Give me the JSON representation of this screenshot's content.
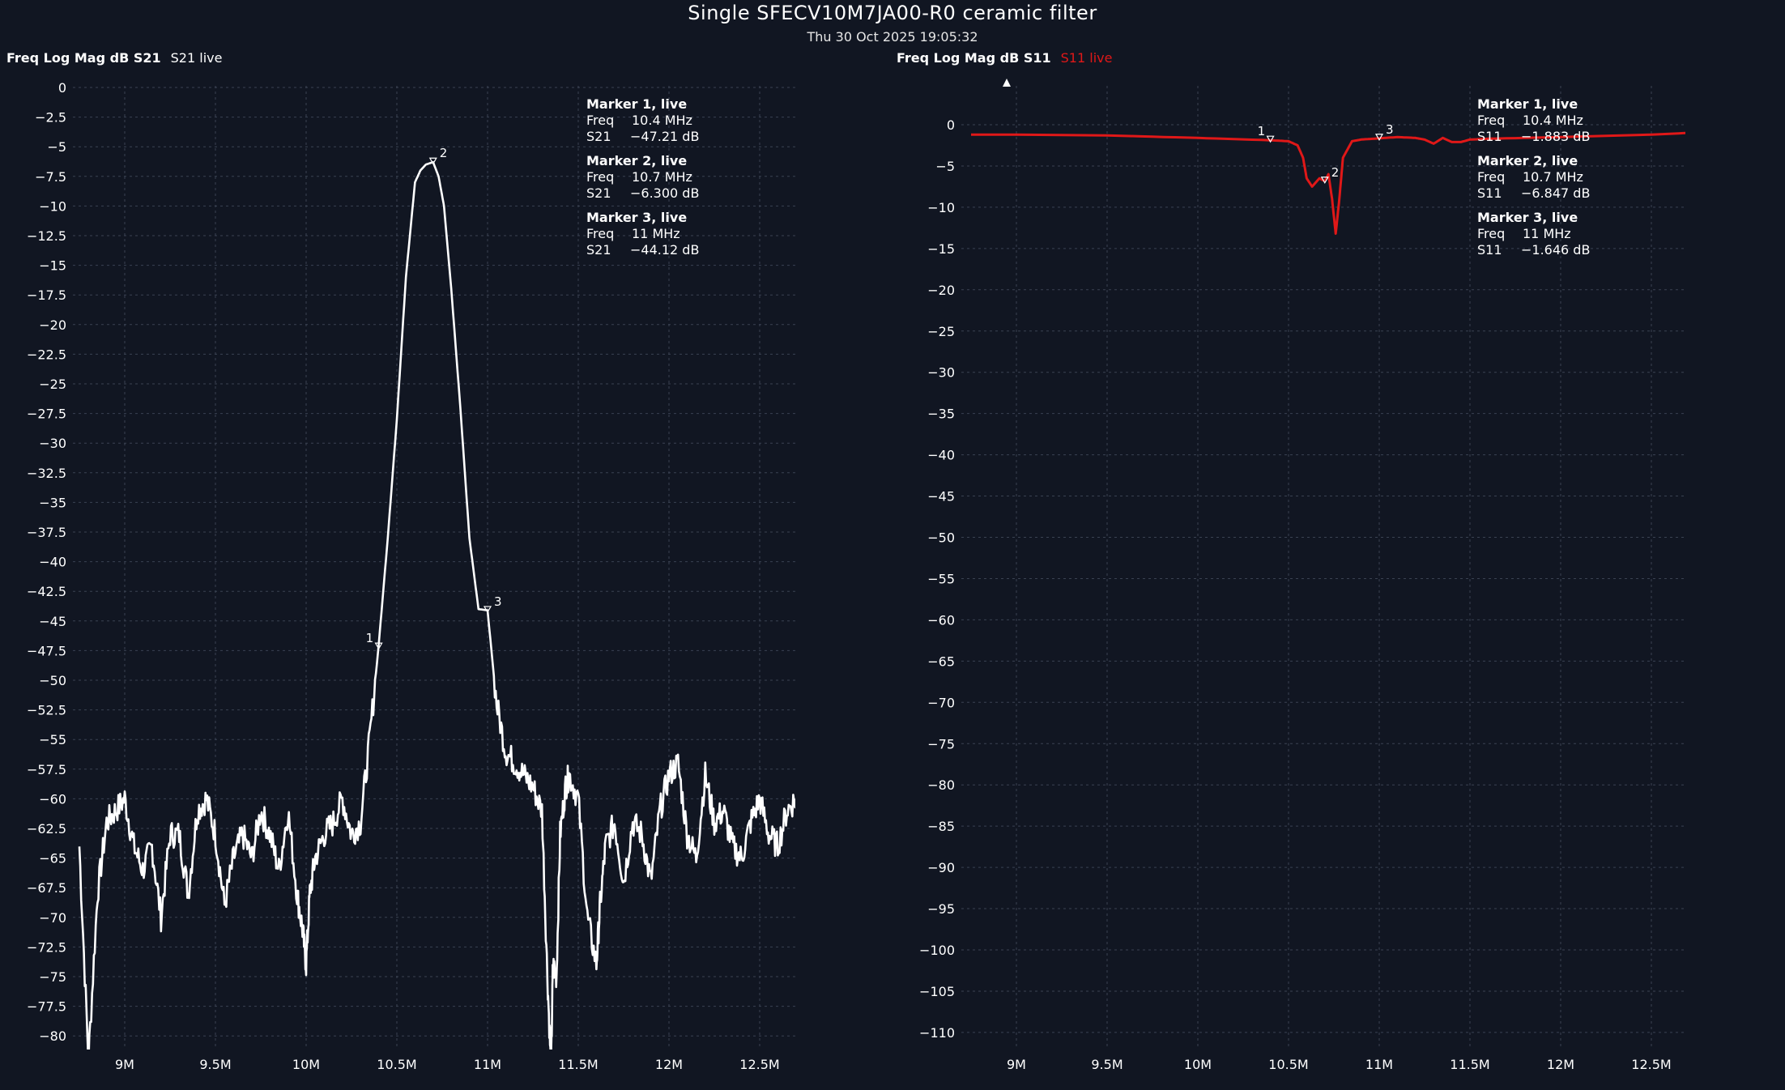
{
  "title": "Single SFECV10M7JA00-R0 ceramic filter",
  "subtitle": "Thu 30 Oct 2025 19:05:32",
  "colors": {
    "background": "#111622",
    "grid": "#3a4252",
    "s21": "#ffffff",
    "s11": "#e01818",
    "text": "#ffffff"
  },
  "chart_data": [
    {
      "type": "line",
      "format_label": "Freq Log Mag dB S21",
      "trace_label": "S21 live",
      "trace_color": "#ffffff",
      "param": "S21",
      "x_range_hz": [
        8750000,
        12700000
      ],
      "ylim": [
        -81.5,
        0
      ],
      "yticks": [
        0,
        -2.5,
        -5,
        -7.5,
        -10,
        -12.5,
        -15,
        -17.5,
        -20,
        -22.5,
        -25,
        -27.5,
        -30,
        -32.5,
        -35,
        -37.5,
        -40,
        -42.5,
        -45,
        -47.5,
        -50,
        -52.5,
        -55,
        -57.5,
        -60,
        -62.5,
        -65,
        -67.5,
        -70,
        -72.5,
        -75,
        -77.5,
        -80
      ],
      "ytick_labels": [
        "0",
        "−2.5",
        "−5",
        "−7.5",
        "−10",
        "−12.5",
        "−15",
        "−17.5",
        "−20",
        "−22.5",
        "−25",
        "−27.5",
        "−30",
        "−32.5",
        "−35",
        "−37.5",
        "−40",
        "−42.5",
        "−45",
        "−47.5",
        "−50",
        "−52.5",
        "−55",
        "−57.5",
        "−60",
        "−62.5",
        "−65",
        "−67.5",
        "−70",
        "−72.5",
        "−75",
        "−77.5",
        "−80"
      ],
      "xticks_hz": [
        9000000,
        9500000,
        10000000,
        10500000,
        11000000,
        11500000,
        12000000,
        12500000
      ],
      "xtick_labels": [
        "9M",
        "9.5M",
        "10M",
        "10.5M",
        "11M",
        "11.5M",
        "12M",
        "12.5M"
      ],
      "grid": true,
      "x": [
        8750000,
        8800000,
        8850000,
        8900000,
        8950000,
        9000000,
        9050000,
        9100000,
        9150000,
        9200000,
        9250000,
        9300000,
        9350000,
        9400000,
        9450000,
        9500000,
        9550000,
        9600000,
        9650000,
        9700000,
        9750000,
        9800000,
        9850000,
        9900000,
        9950000,
        9980000,
        10000000,
        10020000,
        10050000,
        10100000,
        10150000,
        10200000,
        10250000,
        10300000,
        10350000,
        10400000,
        10450000,
        10500000,
        10550000,
        10600000,
        10630000,
        10660000,
        10700000,
        10730000,
        10760000,
        10800000,
        10850000,
        10900000,
        10950000,
        11000000,
        11050000,
        11100000,
        11150000,
        11200000,
        11250000,
        11300000,
        11330000,
        11350000,
        11360000,
        11380000,
        11400000,
        11430000,
        11450000,
        11500000,
        11550000,
        11600000,
        11620000,
        11650000,
        11700000,
        11750000,
        11800000,
        11850000,
        11900000,
        11950000,
        12000000,
        12050000,
        12100000,
        12150000,
        12200000,
        12250000,
        12300000,
        12350000,
        12400000,
        12450000,
        12500000,
        12550000,
        12600000,
        12650000,
        12700000
      ],
      "y": [
        -64,
        -82,
        -68,
        -62,
        -61,
        -60,
        -64,
        -66,
        -64,
        -70,
        -63,
        -63,
        -68,
        -61,
        -60,
        -63,
        -69,
        -65,
        -63,
        -65,
        -61,
        -63,
        -66,
        -61,
        -68,
        -71,
        -74,
        -68,
        -65,
        -63,
        -62,
        -60,
        -63,
        -62,
        -55,
        -47,
        -38,
        -28,
        -16,
        -8,
        -7,
        -6.5,
        -6.3,
        -7.5,
        -10,
        -17,
        -27,
        -38,
        -44,
        -44.1,
        -52,
        -56,
        -57,
        -58,
        -59,
        -61,
        -75,
        -83,
        -74,
        -75,
        -63,
        -59,
        -58,
        -60,
        -70,
        -74,
        -69,
        -64,
        -62,
        -67,
        -62,
        -63,
        -67,
        -61,
        -58,
        -57,
        -63,
        -65,
        -58,
        -62,
        -61,
        -64,
        -65,
        -62,
        -60,
        -63,
        -64,
        -61,
        -60
      ],
      "markers": [
        {
          "id": "1",
          "x_hz": 10400000,
          "y": -47.21,
          "title": "Marker 1, live",
          "freq_label": "Freq",
          "freq": "10.4 MHz",
          "param_label": "S21",
          "value": "−47.21 dB"
        },
        {
          "id": "2",
          "x_hz": 10700000,
          "y": -6.3,
          "title": "Marker 2, live",
          "freq_label": "Freq",
          "freq": "10.7 MHz",
          "param_label": "S21",
          "value": "−6.300 dB"
        },
        {
          "id": "3",
          "x_hz": 11000000,
          "y": -44.12,
          "title": "Marker 3, live",
          "freq_label": "Freq",
          "freq": "11 MHz",
          "param_label": "S21",
          "value": "−44.12 dB"
        }
      ]
    },
    {
      "type": "line",
      "format_label": "Freq Log Mag dB S11",
      "trace_label": "S11 live",
      "trace_color": "#e01818",
      "param": "S11",
      "x_range_hz": [
        8750000,
        12700000
      ],
      "ylim": [
        -112,
        5
      ],
      "yticks": [
        0,
        -5,
        -10,
        -15,
        -20,
        -25,
        -30,
        -35,
        -40,
        -45,
        -50,
        -55,
        -60,
        -65,
        -70,
        -75,
        -80,
        -85,
        -90,
        -95,
        -100,
        -105,
        -110
      ],
      "ytick_labels": [
        "0",
        "−5",
        "−10",
        "−15",
        "−20",
        "−25",
        "−30",
        "−35",
        "−40",
        "−45",
        "−50",
        "−55",
        "−60",
        "−65",
        "−70",
        "−75",
        "−80",
        "−85",
        "−90",
        "−95",
        "−100",
        "−105",
        "−110"
      ],
      "xticks_hz": [
        9000000,
        9500000,
        10000000,
        10500000,
        11000000,
        11500000,
        12000000,
        12500000
      ],
      "xtick_labels": [
        "9M",
        "9.5M",
        "10M",
        "10.5M",
        "11M",
        "11.5M",
        "12M",
        "12.5M"
      ],
      "grid": true,
      "x": [
        8750000,
        9000000,
        9500000,
        10000000,
        10400000,
        10500000,
        10550000,
        10580000,
        10600000,
        10630000,
        10650000,
        10670000,
        10700000,
        10720000,
        10740000,
        10760000,
        10780000,
        10800000,
        10850000,
        10900000,
        11000000,
        11100000,
        11200000,
        11250000,
        11300000,
        11350000,
        11400000,
        11450000,
        11500000,
        11600000,
        12000000,
        12500000,
        12700000
      ],
      "y": [
        -1.2,
        -1.2,
        -1.3,
        -1.6,
        -1.883,
        -2.0,
        -2.5,
        -4.0,
        -6.5,
        -7.5,
        -7.0,
        -6.5,
        -6.847,
        -6.0,
        -9.0,
        -13.2,
        -9.0,
        -4.0,
        -2.0,
        -1.8,
        -1.646,
        -1.5,
        -1.6,
        -1.8,
        -2.3,
        -1.6,
        -2.1,
        -2.1,
        -1.8,
        -1.7,
        -1.5,
        -1.2,
        -1.0
      ],
      "markers": [
        {
          "id": "1",
          "x_hz": 10400000,
          "y": -1.883,
          "title": "Marker 1, live",
          "freq_label": "Freq",
          "freq": "10.4 MHz",
          "param_label": "S11",
          "value": "−1.883 dB"
        },
        {
          "id": "2",
          "x_hz": 10700000,
          "y": -6.847,
          "title": "Marker 2, live",
          "freq_label": "Freq",
          "freq": "10.7 MHz",
          "param_label": "S11",
          "value": "−6.847 dB"
        },
        {
          "id": "3",
          "x_hz": 11000000,
          "y": -1.646,
          "title": "Marker 3, live",
          "freq_label": "Freq",
          "freq": "11 MHz",
          "param_label": "S11",
          "value": "−1.646 dB"
        }
      ]
    }
  ]
}
